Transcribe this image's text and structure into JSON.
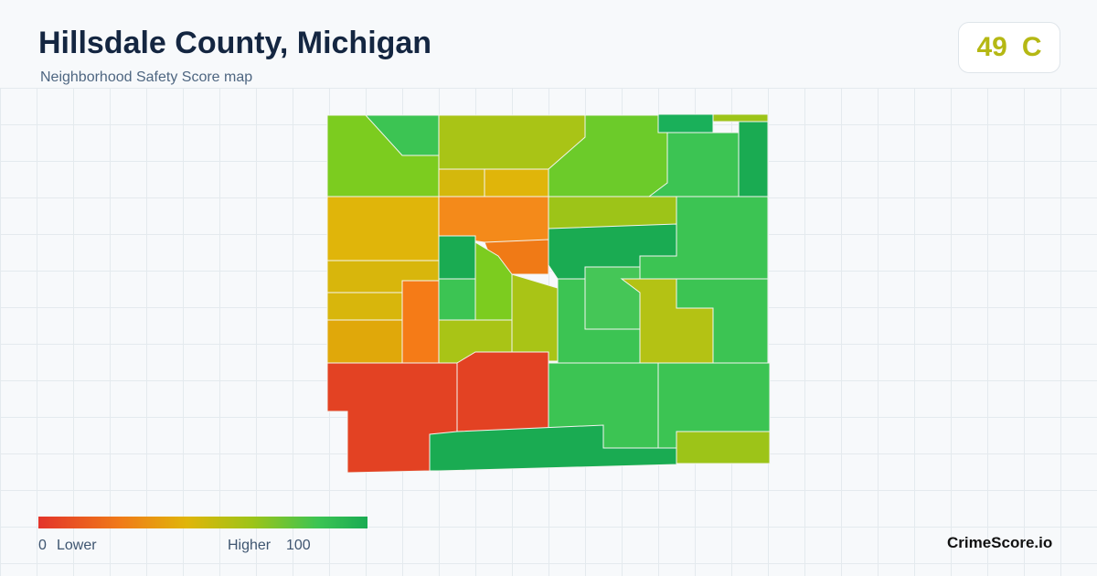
{
  "header": {
    "title": "Hillsdale County, Michigan",
    "subtitle": "Neighborhood Safety Score map"
  },
  "score": {
    "value": 49,
    "grade": "C"
  },
  "legend": {
    "min": 0,
    "min_label": "Lower",
    "max_label": "Higher",
    "max": 100
  },
  "footer": {
    "brand": "CrimeScore.io"
  }
}
